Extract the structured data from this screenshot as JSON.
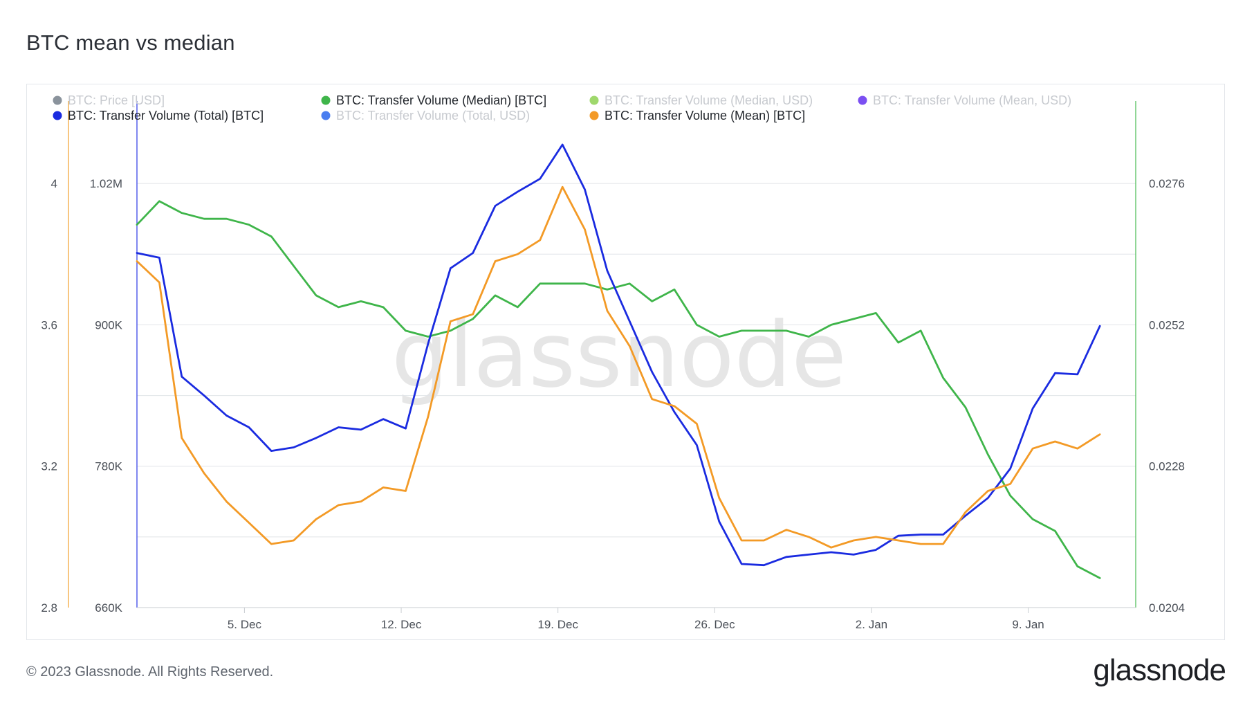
{
  "page": {
    "title": "BTC mean vs median",
    "copyright": "© 2023 Glassnode. All Rights Reserved.",
    "logo": "glassnode",
    "watermark": "glassnode"
  },
  "chart_data": {
    "type": "line",
    "title": "BTC mean vs median",
    "legend": [
      {
        "name": "BTC: Price [USD]",
        "color": "#8a939c",
        "active": false
      },
      {
        "name": "BTC: Transfer Volume (Median) [BTC]",
        "color": "#3fb54a",
        "active": true
      },
      {
        "name": "BTC: Transfer Volume (Median, USD)",
        "color": "#9fd86c",
        "active": false
      },
      {
        "name": "BTC: Transfer Volume (Mean, USD)",
        "color": "#7b4ff2",
        "active": false
      },
      {
        "name": "BTC: Transfer Volume (Total) [BTC]",
        "color": "#1a2be0",
        "active": true
      },
      {
        "name": "BTC: Transfer Volume (Total, USD)",
        "color": "#4a7ef0",
        "active": false
      },
      {
        "name": "BTC: Transfer Volume (Mean) [BTC]",
        "color": "#f39a26",
        "active": true
      }
    ],
    "x_ticks": [
      "5. Dec",
      "12. Dec",
      "19. Dec",
      "26. Dec",
      "2. Jan",
      "9. Jan"
    ],
    "x_tick_days": [
      5,
      12,
      19,
      26,
      33,
      40
    ],
    "x_range": [
      0.2,
      44.8
    ],
    "axes": {
      "mean": {
        "ticks": [
          "4",
          "3.6",
          "3.2",
          "2.8"
        ],
        "range": [
          2.8,
          4.2
        ]
      },
      "total": {
        "ticks": [
          "1.02M",
          "900K",
          "780K",
          "660K"
        ],
        "range": [
          660000,
          1080000
        ]
      },
      "median": {
        "ticks": [
          "0.0276",
          "0.0252",
          "0.0228",
          "0.0204"
        ],
        "range": [
          0.0204,
          0.0288
        ]
      }
    },
    "x": [
      0.2,
      1.2,
      2.2,
      3.2,
      4.2,
      5.2,
      6.2,
      7.2,
      8.2,
      9.2,
      10.2,
      11.2,
      12.2,
      13.2,
      14.2,
      15.2,
      16.2,
      17.2,
      18.2,
      19.2,
      20.2,
      21.2,
      22.2,
      23.2,
      24.2,
      25.2,
      26.2,
      27.2,
      28.2,
      29.2,
      30.2,
      31.2,
      32.2,
      33.2,
      34.2,
      35.2,
      36.2,
      37.2,
      38.2,
      39.2,
      40.2,
      41.2,
      42.2,
      43.2
    ],
    "series": [
      {
        "name": "BTC: Transfer Volume (Median) [BTC]",
        "axis": "median",
        "color": "#3fb54a",
        "values": [
          0.0269,
          0.0273,
          0.0271,
          0.027,
          0.027,
          0.0269,
          0.0267,
          0.0262,
          0.0257,
          0.0255,
          0.0256,
          0.0255,
          0.0251,
          0.025,
          0.0251,
          0.0253,
          0.0257,
          0.0255,
          0.0259,
          0.0259,
          0.0259,
          0.0258,
          0.0259,
          0.0256,
          0.0258,
          0.0252,
          0.025,
          0.0251,
          0.0251,
          0.0251,
          0.025,
          0.0252,
          0.0253,
          0.0254,
          0.0249,
          0.0251,
          0.0243,
          0.0238,
          0.023,
          0.0223,
          0.0219,
          0.0217,
          0.0211,
          0.0209
        ]
      },
      {
        "name": "BTC: Transfer Volume (Total) [BTC]",
        "axis": "total",
        "color": "#1a2be0",
        "values": [
          961000,
          957000,
          856000,
          840000,
          823000,
          813000,
          793000,
          796000,
          804000,
          813000,
          811000,
          820000,
          812000,
          884000,
          948000,
          961000,
          1001000,
          1013000,
          1024000,
          1053000,
          1015000,
          946000,
          903000,
          860000,
          826000,
          798000,
          733000,
          697000,
          696000,
          703000,
          705000,
          707000,
          705000,
          709000,
          721000,
          722000,
          722000,
          738000,
          753000,
          778000,
          829000,
          859000,
          858000,
          899000
        ]
      },
      {
        "name": "BTC: Transfer Volume (Mean) [BTC]",
        "axis": "mean",
        "color": "#f39a26",
        "values": [
          3.78,
          3.72,
          3.28,
          3.18,
          3.1,
          3.04,
          2.98,
          2.99,
          3.05,
          3.09,
          3.1,
          3.14,
          3.13,
          3.34,
          3.61,
          3.63,
          3.78,
          3.8,
          3.84,
          3.99,
          3.87,
          3.64,
          3.54,
          3.39,
          3.37,
          3.32,
          3.11,
          2.99,
          2.99,
          3.02,
          3.0,
          2.97,
          2.99,
          3.0,
          2.99,
          2.98,
          2.98,
          3.07,
          3.13,
          3.15,
          3.25,
          3.27,
          3.25,
          3.29
        ]
      }
    ],
    "grid": true
  }
}
